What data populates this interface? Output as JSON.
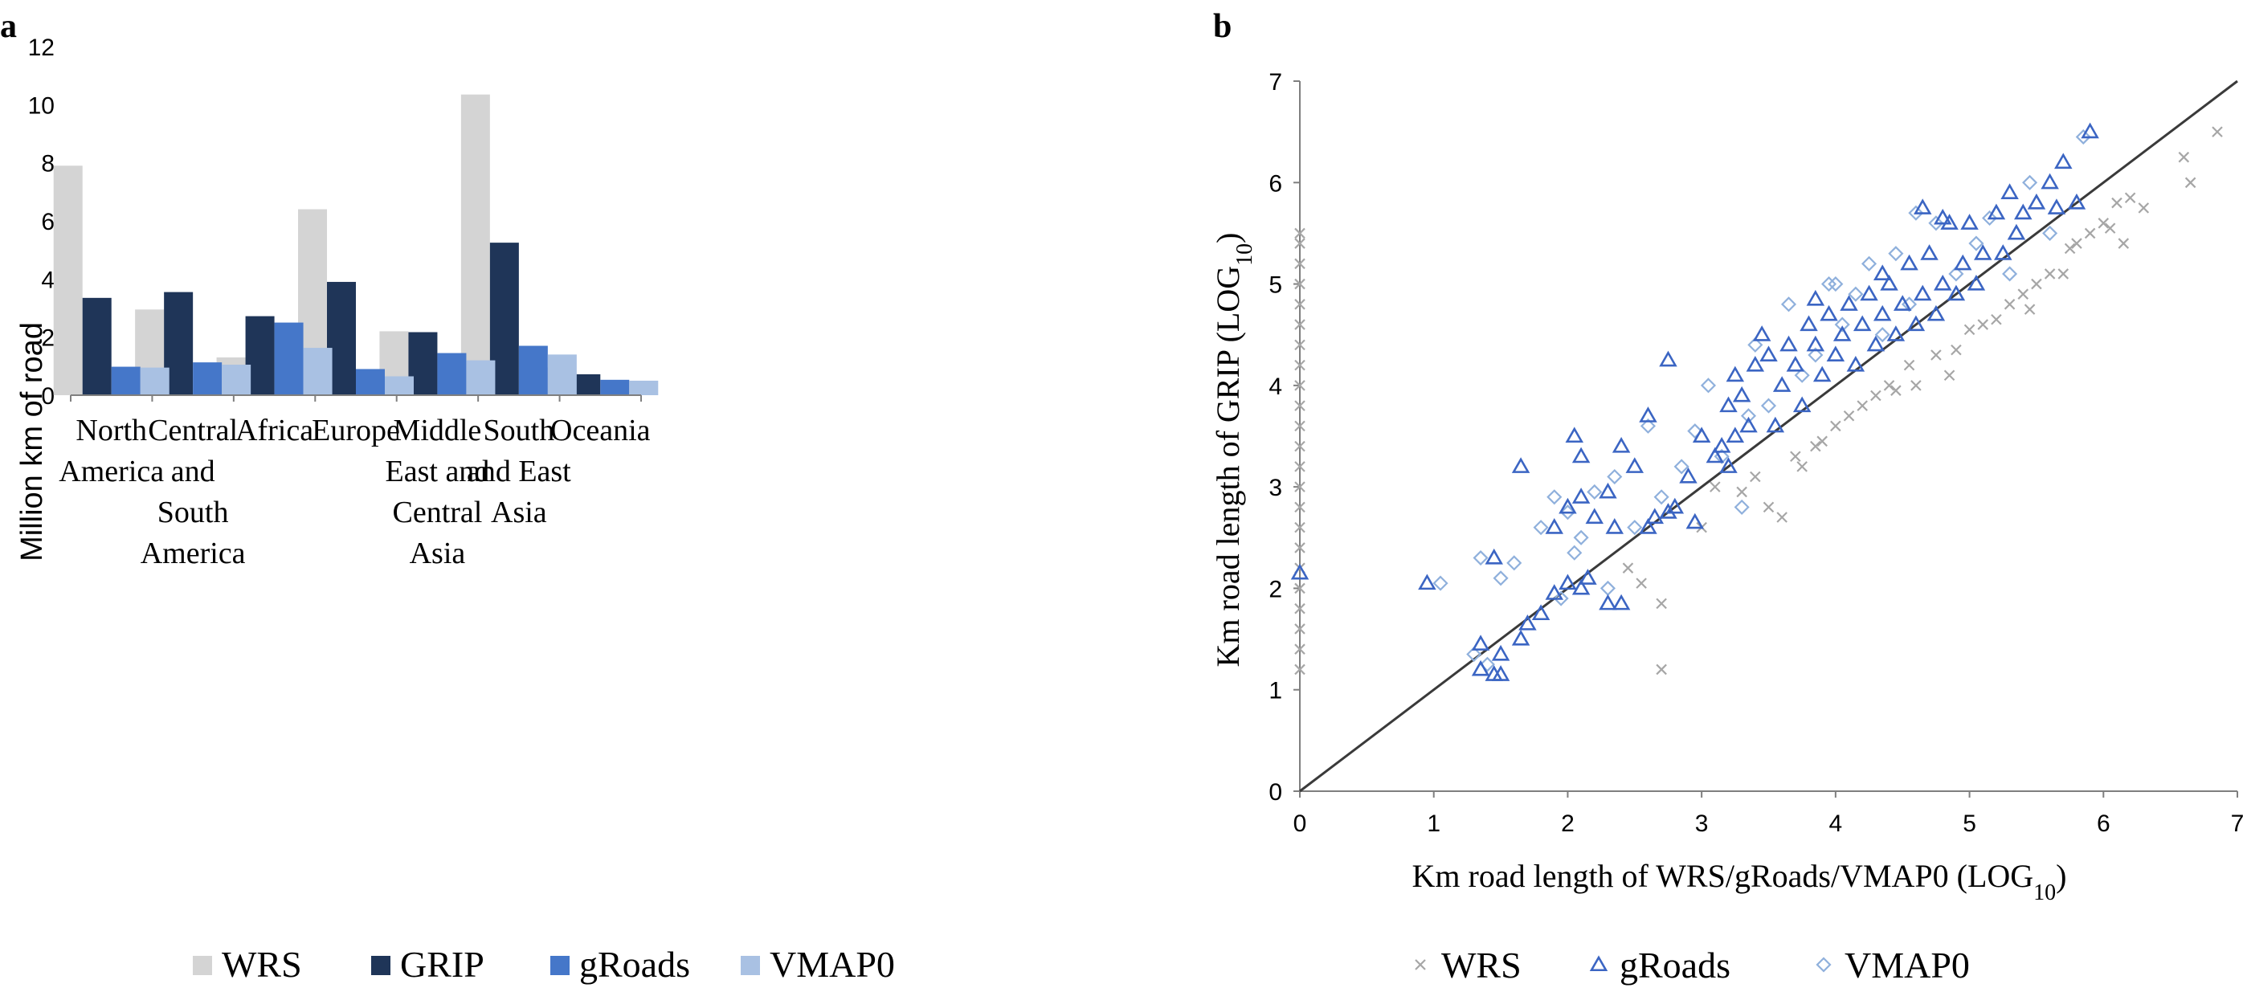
{
  "panel_a_label": "a",
  "panel_b_label": "b",
  "colors": {
    "WRS": "#d4d4d4",
    "GRIP": "#1f3558",
    "gRoads": "#4577c9",
    "VMAP0": "#a9c1e3",
    "WRS_marker": "#a6a6a6",
    "gRoads_marker": "#3b65c3",
    "VMAP0_marker": "#8fb0dc",
    "axis": "#7f7f7f",
    "line": "#3a3a3a"
  },
  "chart_data": [
    {
      "type": "bar",
      "panel": "a",
      "title": "",
      "ylabel": "Million km of road",
      "ylim": [
        0,
        12
      ],
      "yticks": [
        "0",
        "2",
        "4",
        "6",
        "8",
        "10",
        "12"
      ],
      "categories": [
        [
          "North",
          "America"
        ],
        [
          "Central",
          "and",
          "South",
          "America"
        ],
        [
          "Africa"
        ],
        [
          "Europe"
        ],
        [
          "Middle",
          "East and",
          "Central",
          "Asia"
        ],
        [
          "South",
          "and East",
          "Asia"
        ],
        [
          "Oceania"
        ]
      ],
      "series": [
        {
          "name": "WRS",
          "values": [
            7.9,
            2.95,
            1.3,
            6.4,
            2.2,
            10.35,
            0.95
          ]
        },
        {
          "name": "GRIP",
          "values": [
            3.35,
            3.55,
            2.72,
            3.9,
            2.17,
            5.25,
            0.72
          ]
        },
        {
          "name": "gRoads",
          "values": [
            0.98,
            1.13,
            2.5,
            0.9,
            1.45,
            1.7,
            0.53
          ]
        },
        {
          "name": "VMAP0",
          "values": [
            0.95,
            1.05,
            1.63,
            0.65,
            1.2,
            1.4,
            0.5
          ]
        }
      ],
      "legend": [
        "WRS",
        "GRIP",
        "gRoads",
        "VMAP0"
      ]
    },
    {
      "type": "scatter",
      "panel": "b",
      "xlabel": "Km road length of WRS/gRoads/VMAP0  (LOG",
      "xlabel_sub": "10",
      "xlabel_end": ")",
      "ylabel": "Km road length of GRIP  (LOG",
      "ylabel_sub": "10",
      "ylabel_end": ")",
      "xlim": [
        0,
        7
      ],
      "ylim": [
        0,
        7
      ],
      "xticks": [
        "0",
        "1",
        "2",
        "3",
        "4",
        "5",
        "6",
        "7"
      ],
      "yticks": [
        "0",
        "1",
        "2",
        "3",
        "4",
        "5",
        "6",
        "7"
      ],
      "reference_line": [
        [
          0,
          0
        ],
        [
          7,
          7
        ]
      ],
      "legend": [
        "WRS",
        "gRoads",
        "VMAP0"
      ],
      "series": [
        {
          "name": "WRS",
          "marker": "x",
          "points": [
            [
              0,
              1.2
            ],
            [
              0,
              1.4
            ],
            [
              0,
              1.6
            ],
            [
              0,
              1.8
            ],
            [
              0,
              2.0
            ],
            [
              0,
              2.2
            ],
            [
              0,
              2.4
            ],
            [
              0,
              2.6
            ],
            [
              0,
              2.8
            ],
            [
              0,
              3.0
            ],
            [
              0,
              3.2
            ],
            [
              0,
              3.4
            ],
            [
              0,
              3.6
            ],
            [
              0,
              3.8
            ],
            [
              0,
              4.0
            ],
            [
              0,
              4.2
            ],
            [
              0,
              4.4
            ],
            [
              0,
              4.6
            ],
            [
              0,
              4.8
            ],
            [
              0,
              5.0
            ],
            [
              0,
              5.2
            ],
            [
              0,
              5.4
            ],
            [
              0,
              5.5
            ],
            [
              2.7,
              1.2
            ],
            [
              2.7,
              1.85
            ],
            [
              2.55,
              2.05
            ],
            [
              2.45,
              2.2
            ],
            [
              3.5,
              2.8
            ],
            [
              3.6,
              2.7
            ],
            [
              3.1,
              3.0
            ],
            [
              3.4,
              3.1
            ],
            [
              3.7,
              3.3
            ],
            [
              3.85,
              3.4
            ],
            [
              3.75,
              3.2
            ],
            [
              4.0,
              3.6
            ],
            [
              4.1,
              3.7
            ],
            [
              4.3,
              3.9
            ],
            [
              4.45,
              3.95
            ],
            [
              4.6,
              4.0
            ],
            [
              4.2,
              3.8
            ],
            [
              4.55,
              4.2
            ],
            [
              4.9,
              4.35
            ],
            [
              4.75,
              4.3
            ],
            [
              5.0,
              4.55
            ],
            [
              5.1,
              4.6
            ],
            [
              5.3,
              4.8
            ],
            [
              5.4,
              4.9
            ],
            [
              5.5,
              5.0
            ],
            [
              5.6,
              5.1
            ],
            [
              5.7,
              5.1
            ],
            [
              5.8,
              5.4
            ],
            [
              5.9,
              5.5
            ],
            [
              6.0,
              5.6
            ],
            [
              6.1,
              5.8
            ],
            [
              6.2,
              5.85
            ],
            [
              6.3,
              5.75
            ],
            [
              6.15,
              5.4
            ],
            [
              5.75,
              5.35
            ],
            [
              6.6,
              6.25
            ],
            [
              6.65,
              6.0
            ],
            [
              6.85,
              6.5
            ],
            [
              4.85,
              4.1
            ],
            [
              5.2,
              4.65
            ],
            [
              3.9,
              3.45
            ],
            [
              3.3,
              2.95
            ],
            [
              3.0,
              2.6
            ],
            [
              4.4,
              4.0
            ],
            [
              5.45,
              4.75
            ],
            [
              6.05,
              5.55
            ]
          ]
        },
        {
          "name": "gRoads",
          "marker": "triangle",
          "points": [
            [
              0,
              2.15
            ],
            [
              0.95,
              2.05
            ],
            [
              1.35,
              1.2
            ],
            [
              1.45,
              1.15
            ],
            [
              1.5,
              1.15
            ],
            [
              1.35,
              1.45
            ],
            [
              1.5,
              1.35
            ],
            [
              1.65,
              1.5
            ],
            [
              1.7,
              1.65
            ],
            [
              1.8,
              1.75
            ],
            [
              1.9,
              1.95
            ],
            [
              2.0,
              2.05
            ],
            [
              2.1,
              2.0
            ],
            [
              1.45,
              2.3
            ],
            [
              1.65,
              3.2
            ],
            [
              2.05,
              3.5
            ],
            [
              2.1,
              3.3
            ],
            [
              1.9,
              2.6
            ],
            [
              2.0,
              2.8
            ],
            [
              2.1,
              2.9
            ],
            [
              2.2,
              2.7
            ],
            [
              2.3,
              2.95
            ],
            [
              2.35,
              2.6
            ],
            [
              2.4,
              3.4
            ],
            [
              2.5,
              3.2
            ],
            [
              2.6,
              2.6
            ],
            [
              2.65,
              2.7
            ],
            [
              2.6,
              3.7
            ],
            [
              2.75,
              4.25
            ],
            [
              2.8,
              2.8
            ],
            [
              2.9,
              3.1
            ],
            [
              2.95,
              2.65
            ],
            [
              3.0,
              3.5
            ],
            [
              3.1,
              3.3
            ],
            [
              3.15,
              3.4
            ],
            [
              3.2,
              3.8
            ],
            [
              3.25,
              4.1
            ],
            [
              3.3,
              3.9
            ],
            [
              3.35,
              3.6
            ],
            [
              3.4,
              4.2
            ],
            [
              3.45,
              4.5
            ],
            [
              3.5,
              4.3
            ],
            [
              3.55,
              3.6
            ],
            [
              3.6,
              4.0
            ],
            [
              3.65,
              4.4
            ],
            [
              3.7,
              4.2
            ],
            [
              3.75,
              3.8
            ],
            [
              3.8,
              4.6
            ],
            [
              3.85,
              4.4
            ],
            [
              3.9,
              4.1
            ],
            [
              3.95,
              4.7
            ],
            [
              4.0,
              4.3
            ],
            [
              4.05,
              4.5
            ],
            [
              4.1,
              4.8
            ],
            [
              4.15,
              4.2
            ],
            [
              4.2,
              4.6
            ],
            [
              4.25,
              4.9
            ],
            [
              4.3,
              4.4
            ],
            [
              4.35,
              4.7
            ],
            [
              4.4,
              5.0
            ],
            [
              4.45,
              4.5
            ],
            [
              4.5,
              4.8
            ],
            [
              4.55,
              5.2
            ],
            [
              4.6,
              4.6
            ],
            [
              4.65,
              4.9
            ],
            [
              4.7,
              5.3
            ],
            [
              4.75,
              4.7
            ],
            [
              4.8,
              5.0
            ],
            [
              4.85,
              5.6
            ],
            [
              4.9,
              4.9
            ],
            [
              4.95,
              5.2
            ],
            [
              5.0,
              5.6
            ],
            [
              5.05,
              5.0
            ],
            [
              5.1,
              5.3
            ],
            [
              5.2,
              5.7
            ],
            [
              5.25,
              5.3
            ],
            [
              5.3,
              5.9
            ],
            [
              5.35,
              5.5
            ],
            [
              5.4,
              5.7
            ],
            [
              5.5,
              5.8
            ],
            [
              5.6,
              6.0
            ],
            [
              5.65,
              5.75
            ],
            [
              5.7,
              6.2
            ],
            [
              5.8,
              5.8
            ],
            [
              5.9,
              6.5
            ],
            [
              4.65,
              5.75
            ],
            [
              4.8,
              5.65
            ],
            [
              3.85,
              4.85
            ],
            [
              4.35,
              5.1
            ],
            [
              2.3,
              1.85
            ],
            [
              2.4,
              1.85
            ],
            [
              3.2,
              3.2
            ],
            [
              3.25,
              3.5
            ],
            [
              2.15,
              2.1
            ],
            [
              2.75,
              2.75
            ]
          ]
        },
        {
          "name": "VMAP0",
          "marker": "diamond",
          "points": [
            [
              1.05,
              2.05
            ],
            [
              1.3,
              1.35
            ],
            [
              1.4,
              1.25
            ],
            [
              1.35,
              2.3
            ],
            [
              1.5,
              2.1
            ],
            [
              1.6,
              2.25
            ],
            [
              1.8,
              2.6
            ],
            [
              1.9,
              2.9
            ],
            [
              2.0,
              2.75
            ],
            [
              2.1,
              2.5
            ],
            [
              2.2,
              2.95
            ],
            [
              2.35,
              3.1
            ],
            [
              2.5,
              2.6
            ],
            [
              2.6,
              3.6
            ],
            [
              2.7,
              2.9
            ],
            [
              2.85,
              3.2
            ],
            [
              2.95,
              3.55
            ],
            [
              3.05,
              4.0
            ],
            [
              3.15,
              3.3
            ],
            [
              3.3,
              2.8
            ],
            [
              3.4,
              4.4
            ],
            [
              3.5,
              3.8
            ],
            [
              3.65,
              4.8
            ],
            [
              3.75,
              4.1
            ],
            [
              3.85,
              4.3
            ],
            [
              3.95,
              5.0
            ],
            [
              4.05,
              4.6
            ],
            [
              4.15,
              4.9
            ],
            [
              4.25,
              5.2
            ],
            [
              4.35,
              4.5
            ],
            [
              4.45,
              5.3
            ],
            [
              4.55,
              4.8
            ],
            [
              4.75,
              5.6
            ],
            [
              4.9,
              5.1
            ],
            [
              5.05,
              5.4
            ],
            [
              5.15,
              5.65
            ],
            [
              5.3,
              5.1
            ],
            [
              5.45,
              6.0
            ],
            [
              5.6,
              5.5
            ],
            [
              5.85,
              6.45
            ],
            [
              4.0,
              5.0
            ],
            [
              4.6,
              5.7
            ],
            [
              2.3,
              2.0
            ],
            [
              1.95,
              1.9
            ],
            [
              3.35,
              3.7
            ],
            [
              2.05,
              2.35
            ]
          ]
        }
      ]
    }
  ]
}
